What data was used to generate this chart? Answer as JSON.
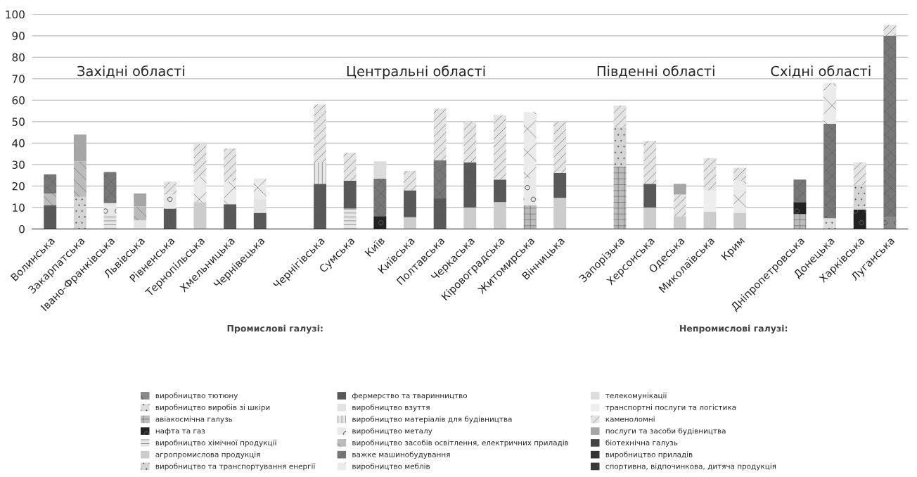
{
  "chart_data": {
    "type": "bar",
    "stacked": true,
    "categories": [
      "Волинська",
      "Закарпатська",
      "Івано-Франківська",
      "Львівська",
      "Рівненська",
      "Тернопільська",
      "Хмельницька",
      "Чернівецька",
      null,
      "Чернігівська",
      "Сумська",
      "Київ",
      "Київська",
      "Полтавська",
      "Черкаська",
      "Кіровоградська",
      "Житомирська",
      "Вінницька",
      null,
      "Запорізька",
      "Херсонська",
      "Одеська",
      "Миколаївська",
      "Крим",
      null,
      "Дніпропетровська",
      "Донецька",
      "Харківська",
      "Луганська"
    ],
    "series": [
      {
        "name": "виробництво тютюну",
        "color": "#888888",
        "values": [
          null,
          null,
          null,
          null,
          null,
          null,
          null,
          null,
          null,
          null,
          null,
          null,
          null,
          null,
          null,
          null,
          null,
          null,
          null,
          null,
          null,
          null,
          null,
          null,
          null,
          null,
          null,
          null,
          5.5
        ]
      },
      {
        "name": "виробництво виробів зі шкіри",
        "color": "#dddddd",
        "values": [
          null,
          null,
          null,
          null,
          null,
          null,
          null,
          null,
          null,
          null,
          null,
          null,
          null,
          null,
          null,
          null,
          null,
          null,
          null,
          null,
          null,
          null,
          null,
          null,
          null,
          null,
          5,
          null,
          null
        ]
      },
      {
        "name": "авіакосмічна галузь",
        "color": "#bbbbbb",
        "values": [
          null,
          null,
          null,
          null,
          null,
          null,
          null,
          null,
          null,
          null,
          null,
          null,
          null,
          null,
          null,
          null,
          11,
          null,
          null,
          29,
          null,
          null,
          null,
          null,
          null,
          7,
          null,
          null,
          null
        ]
      },
      {
        "name": "нафта та газ",
        "color": "#222222",
        "values": [
          null,
          null,
          null,
          null,
          null,
          null,
          null,
          null,
          null,
          null,
          null,
          6,
          null,
          null,
          null,
          null,
          null,
          null,
          null,
          null,
          null,
          null,
          null,
          null,
          null,
          5.5,
          null,
          9,
          null
        ]
      },
      {
        "name": "виробництво хімічної продукції",
        "color": "#e6e6e6",
        "values": [
          null,
          null,
          7,
          null,
          null,
          null,
          null,
          null,
          null,
          null,
          9.5,
          null,
          null,
          null,
          null,
          null,
          null,
          null,
          null,
          null,
          null,
          null,
          null,
          null,
          null,
          null,
          null,
          null,
          null
        ]
      },
      {
        "name": "агропромислова продукція",
        "color": "#cccccc",
        "values": [
          null,
          null,
          null,
          null,
          null,
          12.5,
          null,
          null,
          null,
          null,
          null,
          null,
          5.5,
          null,
          10,
          12.5,
          null,
          14.5,
          null,
          null,
          10,
          6,
          8,
          7.5,
          null,
          null,
          null,
          null,
          null
        ]
      },
      {
        "name": "виробництво та транспортування енергії",
        "color": "#d4d4d4",
        "values": [
          null,
          15,
          null,
          null,
          null,
          null,
          null,
          null,
          null,
          null,
          null,
          null,
          null,
          null,
          null,
          null,
          null,
          null,
          null,
          18.5,
          null,
          null,
          null,
          null,
          null,
          null,
          null,
          11.5,
          null
        ]
      },
      {
        "name": "фермерство та тваринництво",
        "color": "#595959",
        "values": [
          11,
          null,
          null,
          null,
          9.5,
          null,
          11.5,
          7.5,
          null,
          21,
          13,
          null,
          12.5,
          14.5,
          21,
          10.5,
          null,
          11.5,
          null,
          null,
          11,
          null,
          null,
          null,
          null,
          null,
          null,
          null,
          null
        ]
      },
      {
        "name": "виробництво взуття",
        "color": "#e3e3e3",
        "values": [
          null,
          null,
          null,
          4,
          null,
          null,
          null,
          6.5,
          null,
          null,
          null,
          null,
          null,
          null,
          null,
          null,
          null,
          null,
          null,
          null,
          null,
          null,
          null,
          null,
          null,
          null,
          null,
          null,
          null
        ]
      },
      {
        "name": "виробництво матеріалів для будівництва",
        "color": "#e6e6e6",
        "values": [
          null,
          null,
          null,
          null,
          null,
          null,
          null,
          null,
          null,
          10,
          null,
          null,
          null,
          null,
          null,
          null,
          null,
          null,
          null,
          null,
          null,
          null,
          null,
          null,
          null,
          null,
          null,
          null,
          null
        ]
      },
      {
        "name": "виробництво металу",
        "color": "#e9e9e9",
        "values": [
          null,
          null,
          5,
          null,
          6.5,
          null,
          null,
          null,
          null,
          null,
          null,
          null,
          null,
          null,
          null,
          null,
          12.5,
          null,
          null,
          null,
          null,
          null,
          null,
          null,
          null,
          null,
          null,
          null,
          null
        ]
      },
      {
        "name": "виробництво засобів освітлення, електричних приладів",
        "color": "#bbbbbb",
        "values": [
          5.5,
          16.5,
          null,
          6.5,
          null,
          null,
          null,
          null,
          null,
          null,
          null,
          null,
          null,
          null,
          null,
          null,
          null,
          null,
          null,
          null,
          null,
          null,
          null,
          null,
          null,
          null,
          null,
          null,
          null
        ]
      },
      {
        "name": "важке машинобудування",
        "color": "#777777",
        "values": [
          9,
          null,
          14.5,
          null,
          null,
          null,
          null,
          null,
          null,
          null,
          null,
          17.5,
          null,
          17.5,
          null,
          null,
          null,
          null,
          null,
          null,
          null,
          null,
          null,
          null,
          null,
          10.5,
          44,
          null,
          84.5
        ]
      },
      {
        "name": "виробництво меблів",
        "color": "#ebebeb",
        "values": [
          null,
          null,
          null,
          null,
          null,
          12,
          10.5,
          9.5,
          null,
          null,
          null,
          null,
          null,
          null,
          null,
          null,
          31,
          null,
          null,
          null,
          null,
          null,
          null,
          15,
          null,
          null,
          19,
          null,
          null
        ]
      },
      {
        "name": "телекомунікації",
        "color": "#dcdcdc",
        "values": [
          null,
          null,
          null,
          null,
          null,
          null,
          null,
          null,
          null,
          null,
          null,
          8,
          null,
          null,
          null,
          null,
          null,
          null,
          null,
          null,
          null,
          null,
          null,
          null,
          null,
          null,
          null,
          null,
          null
        ]
      },
      {
        "name": "транспортні послуги та логістика",
        "color": "#eeeeee",
        "values": [
          null,
          null,
          null,
          null,
          null,
          null,
          null,
          null,
          null,
          null,
          null,
          null,
          null,
          null,
          null,
          null,
          null,
          null,
          null,
          null,
          null,
          null,
          10,
          null,
          null,
          null,
          null,
          null,
          null
        ]
      },
      {
        "name": "каменоломні",
        "color": "#e4e4e4",
        "values": [
          null,
          null,
          null,
          null,
          6,
          15,
          15.5,
          null,
          null,
          27,
          13,
          null,
          9,
          24,
          19,
          30,
          null,
          24,
          null,
          10,
          20,
          10,
          15,
          6,
          null,
          null,
          null,
          10.5,
          5
        ]
      },
      {
        "name": "послуги та засоби будівництва",
        "color": "#a6a6a6",
        "values": [
          null,
          12.5,
          null,
          6,
          null,
          null,
          null,
          null,
          null,
          null,
          null,
          null,
          null,
          null,
          null,
          null,
          null,
          null,
          null,
          null,
          null,
          5,
          null,
          null,
          null,
          null,
          null,
          null,
          null
        ]
      },
      {
        "name": "біотехнічна галузь",
        "color": "#444444",
        "values": [
          null,
          null,
          null,
          null,
          null,
          null,
          null,
          null,
          null,
          null,
          null,
          null,
          null,
          null,
          null,
          null,
          null,
          null,
          null,
          null,
          null,
          null,
          null,
          null,
          null,
          null,
          null,
          null,
          null
        ]
      },
      {
        "name": "виробництво приладів",
        "color": "#333333",
        "values": [
          null,
          null,
          null,
          null,
          null,
          null,
          null,
          null,
          null,
          null,
          null,
          null,
          null,
          null,
          null,
          null,
          null,
          null,
          null,
          null,
          null,
          null,
          null,
          null,
          null,
          null,
          null,
          null,
          null
        ]
      },
      {
        "name": "спортивна, відпочинкова, дитяча продукція",
        "color": "#3a3a3a",
        "values": [
          null,
          null,
          null,
          null,
          null,
          null,
          null,
          null,
          null,
          null,
          null,
          null,
          null,
          null,
          null,
          null,
          null,
          null,
          null,
          null,
          null,
          null,
          null,
          null,
          null,
          null,
          null,
          null,
          null
        ]
      }
    ],
    "ylim": [
      0,
      100
    ],
    "yticks": [
      0,
      10,
      20,
      30,
      40,
      50,
      60,
      70,
      80,
      90,
      100
    ],
    "grid": "y",
    "legend": "bottom",
    "annotations": [
      "Західні області",
      "Центральні області",
      "Південні області",
      "Східні області",
      "Промислові галузі:",
      "Непромислові галузі:"
    ]
  }
}
